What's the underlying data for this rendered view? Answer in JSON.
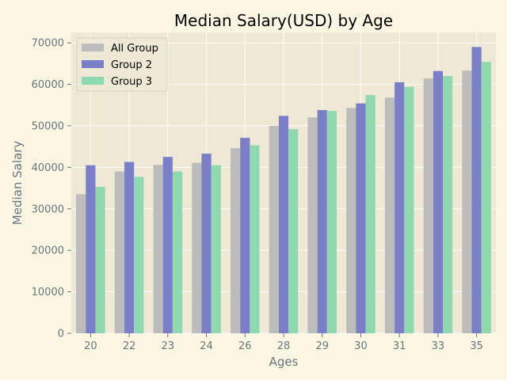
{
  "chart_data": {
    "type": "bar",
    "title": "Median Salary(USD) by Age",
    "xlabel": "Ages",
    "ylabel": "Median Salary",
    "categories": [
      "20",
      "22",
      "23",
      "24",
      "26",
      "28",
      "29",
      "30",
      "31",
      "33",
      "35"
    ],
    "series": [
      {
        "name": "All Group",
        "color": "#bcbcbc",
        "values": [
          33500,
          39000,
          40600,
          41100,
          44600,
          50000,
          52000,
          54300,
          56800,
          61400,
          63300
        ]
      },
      {
        "name": "Group 2",
        "color": "#7b7fc8",
        "values": [
          40500,
          41300,
          42500,
          43300,
          47100,
          52400,
          53800,
          55400,
          60500,
          63200,
          69000
        ]
      },
      {
        "name": "Group 3",
        "color": "#8fd8b0",
        "values": [
          35300,
          37700,
          39000,
          40500,
          45300,
          49200,
          53600,
          57400,
          59400,
          62000,
          65400
        ]
      }
    ],
    "ylim": [
      0,
      72500
    ],
    "yticks": [
      0,
      10000,
      20000,
      30000,
      40000,
      50000,
      60000,
      70000
    ],
    "grid": true,
    "legend_position": "top-left",
    "plot_background": "#eee8d5",
    "page_background": "#fdf6e3"
  }
}
